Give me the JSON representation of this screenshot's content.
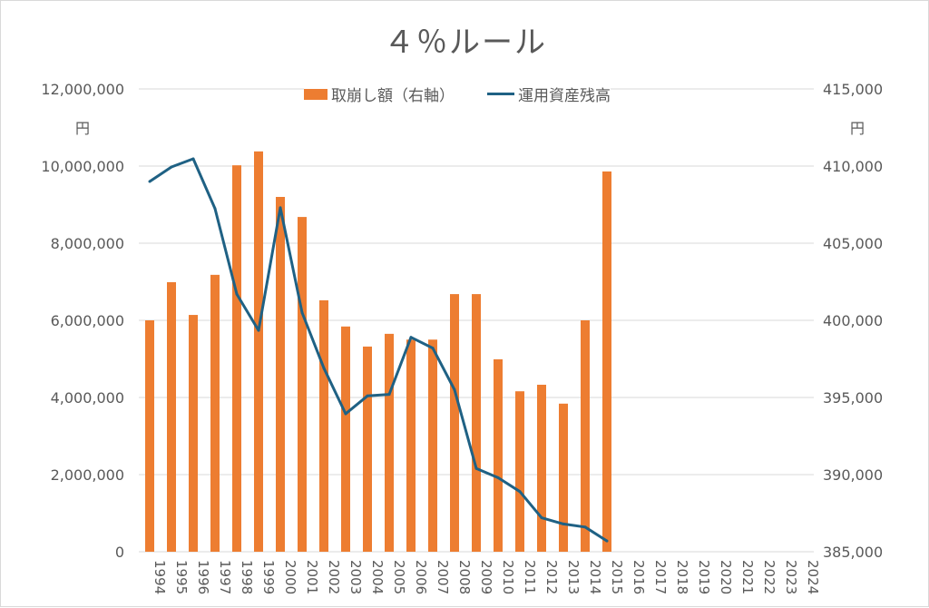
{
  "chart_data": {
    "type": "bar+line",
    "title": "４％ルール",
    "categories": [
      "1994",
      "1995",
      "1996",
      "1997",
      "1998",
      "1999",
      "2000",
      "2001",
      "2002",
      "2003",
      "2004",
      "2005",
      "2006",
      "2007",
      "2008",
      "2009",
      "2010",
      "2011",
      "2012",
      "2013",
      "2014",
      "2015",
      "2016",
      "2017",
      "2018",
      "2019",
      "2020",
      "2021",
      "2022",
      "2023",
      "2024"
    ],
    "series": [
      {
        "name": "取崩し額（右軸）",
        "type": "bar",
        "axis": "left",
        "color": "#ED7D31",
        "values": [
          6000000,
          6990000,
          6140000,
          7180000,
          10020000,
          10380000,
          9200000,
          8680000,
          6520000,
          5840000,
          5320000,
          5650000,
          5500000,
          5500000,
          6680000,
          6680000,
          4990000,
          4160000,
          4330000,
          3840000,
          6000000,
          9860000,
          null,
          null,
          null,
          null,
          null,
          null,
          null,
          null,
          null
        ]
      },
      {
        "name": "運用資産残高",
        "type": "line",
        "axis": "right",
        "color": "#1F6184",
        "values": [
          409000,
          409940,
          410470,
          407240,
          401700,
          399350,
          407300,
          400500,
          396900,
          393940,
          395100,
          395200,
          398900,
          398200,
          395500,
          390400,
          389800,
          388900,
          387200,
          386800,
          386600,
          385700,
          null,
          null,
          null,
          null,
          null,
          null,
          null,
          null,
          null
        ]
      }
    ],
    "left_axis": {
      "ylim": [
        0,
        12000000
      ],
      "ticks": [
        "0",
        "2,000,000",
        "4,000,000",
        "6,000,000",
        "8,000,000",
        "10,000,000",
        "12,000,000"
      ],
      "tick_values": [
        0,
        2000000,
        4000000,
        6000000,
        8000000,
        10000000,
        12000000
      ],
      "unit": "円"
    },
    "right_axis": {
      "ylim": [
        385000,
        415000
      ],
      "ticks": [
        "385,000",
        "390,000",
        "395,000",
        "400,000",
        "405,000",
        "410,000",
        "415,000"
      ],
      "tick_values": [
        385000,
        390000,
        395000,
        400000,
        405000,
        410000,
        415000
      ],
      "unit": "円"
    },
    "grid": true,
    "legend_position": "top"
  }
}
